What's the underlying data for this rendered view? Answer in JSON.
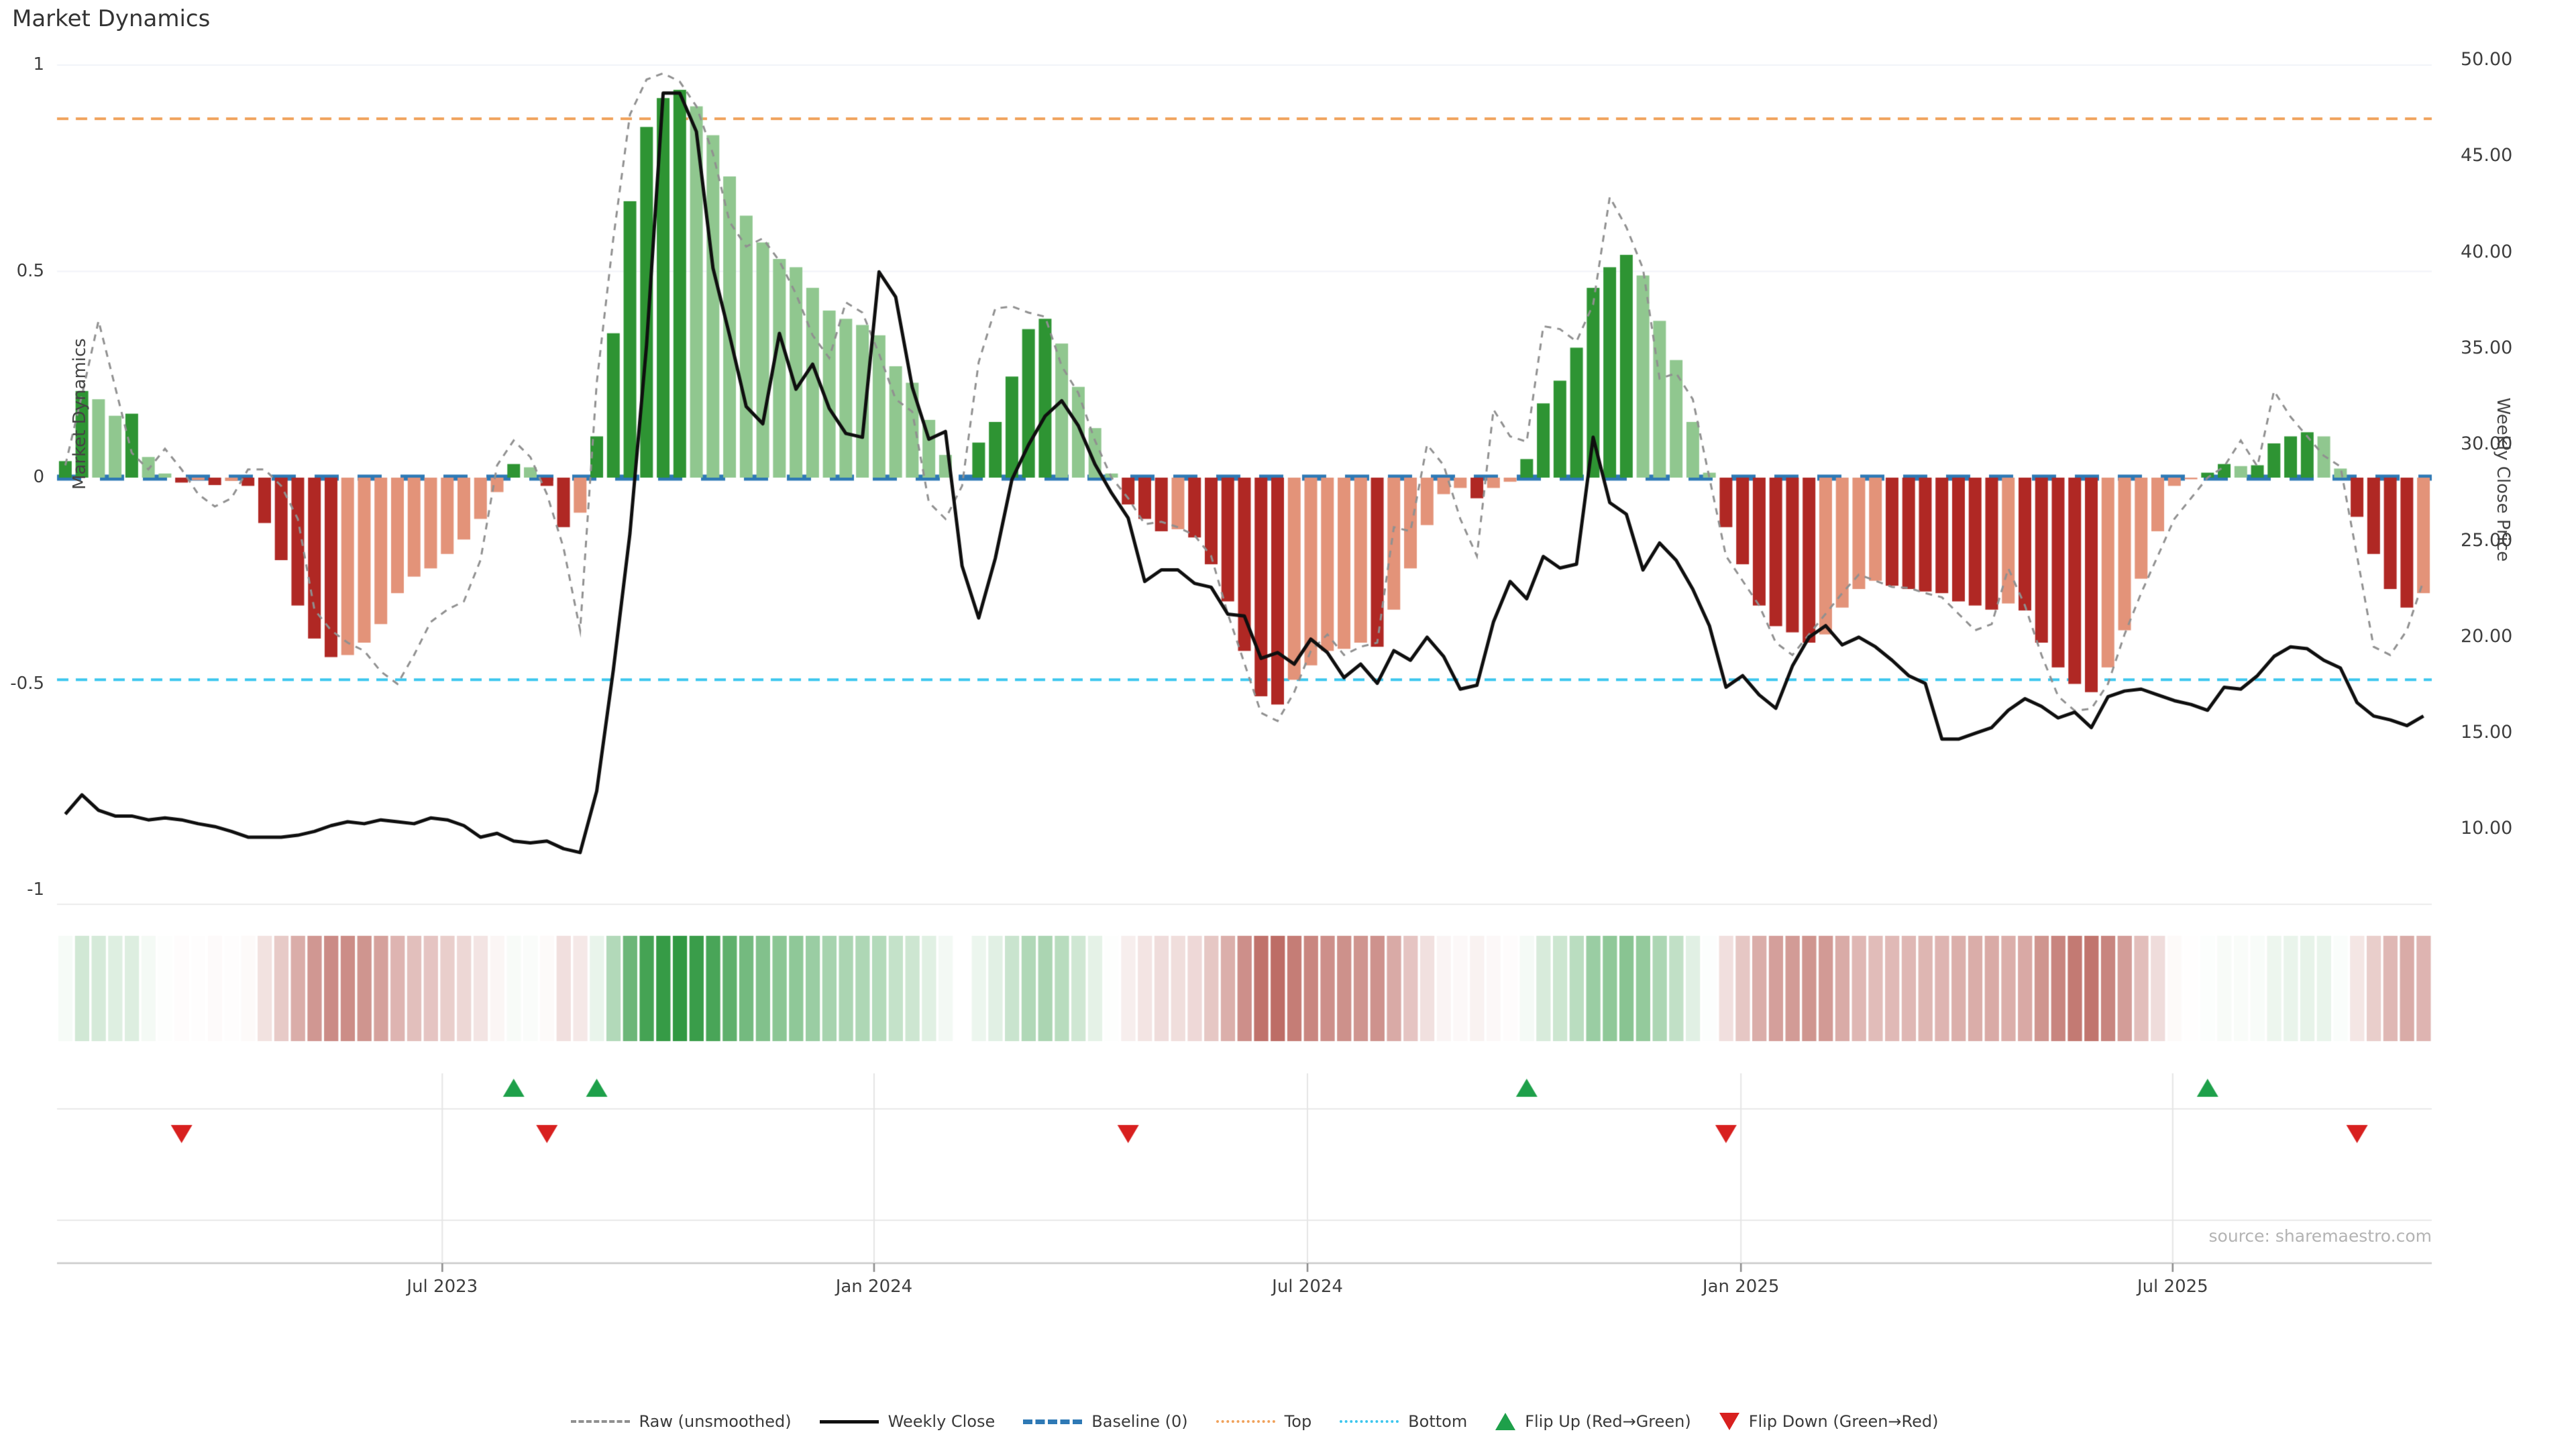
{
  "title": "Market Dynamics",
  "source": "source: sharemaestro.com",
  "left_axis": {
    "label": "Market Dynamics",
    "ticks": [
      "1",
      "0.5",
      "0",
      "-0.5",
      "-1"
    ],
    "tick_values": [
      1,
      0.5,
      0,
      -0.5,
      -1
    ]
  },
  "right_axis": {
    "label": "Weekly Close Price",
    "ticks": [
      "50.00",
      "45.00",
      "40.00",
      "35.00",
      "30.00",
      "25.00",
      "20.00",
      "15.00",
      "10.00"
    ],
    "tick_values": [
      50,
      45,
      40,
      35,
      30,
      25,
      20,
      15,
      10
    ]
  },
  "x_axis": {
    "ticks": [
      {
        "label": "Jul 2023",
        "week": 22.7
      },
      {
        "label": "Jan 2024",
        "week": 48.7
      },
      {
        "label": "Jul 2024",
        "week": 74.8
      },
      {
        "label": "Jan 2025",
        "week": 100.9
      },
      {
        "label": "Jul 2025",
        "week": 126.9
      }
    ]
  },
  "legend": [
    {
      "label": "Raw (unsmoothed)",
      "symbol": "dashed-line",
      "color": "#8f8f8f"
    },
    {
      "label": "Weekly Close",
      "symbol": "solid-line",
      "color": "#111111"
    },
    {
      "label": "Baseline (0)",
      "symbol": "long-dash-line",
      "color": "#2e79b5"
    },
    {
      "label": "Top",
      "symbol": "dotted-line",
      "color": "#f0a25c"
    },
    {
      "label": "Bottom",
      "symbol": "dotted-line",
      "color": "#3cc6ee"
    },
    {
      "label": "Flip Up (Red→Green)",
      "symbol": "triangle-up",
      "color": "#1ea04a"
    },
    {
      "label": "Flip Down (Green→Red)",
      "symbol": "triangle-down",
      "color": "#d8201f"
    }
  ],
  "chart_data": {
    "type": "bar",
    "subtype": "composite-weekly",
    "title": "Market Dynamics",
    "xlabel": "",
    "ylabel_left": "Market Dynamics",
    "ylabel_right": "Weekly Close Price",
    "left_range": [
      -1,
      1
    ],
    "right_range": [
      10,
      50
    ],
    "baseline": 0,
    "top_line": 0.87,
    "bottom_line": -0.49,
    "missing_week_index": 54,
    "n_weeks": 143,
    "series": [
      {
        "name": "Market Dynamics (smoothed bars)",
        "type": "bar",
        "axis": "left",
        "values": [
          0.04,
          0.21,
          0.19,
          0.15,
          0.155,
          0.05,
          0.01,
          -0.012,
          -0.006,
          -0.018,
          -0.008,
          -0.02,
          -0.11,
          -0.2,
          -0.31,
          -0.39,
          -0.435,
          -0.43,
          -0.4,
          -0.355,
          -0.28,
          -0.24,
          -0.22,
          -0.185,
          -0.15,
          -0.1,
          -0.035,
          0.033,
          0.025,
          -0.02,
          -0.12,
          -0.085,
          0.1,
          0.35,
          0.67,
          0.85,
          0.92,
          0.94,
          0.9,
          0.83,
          0.73,
          0.635,
          0.57,
          0.53,
          0.51,
          0.46,
          0.405,
          0.385,
          0.37,
          0.345,
          0.27,
          0.23,
          0.14,
          0.055,
          null,
          0.085,
          0.135,
          0.245,
          0.36,
          0.385,
          0.325,
          0.22,
          0.12,
          0.01,
          -0.065,
          -0.1,
          -0.13,
          -0.125,
          -0.145,
          -0.21,
          -0.3,
          -0.42,
          -0.53,
          -0.55,
          -0.49,
          -0.455,
          -0.42,
          -0.415,
          -0.4,
          -0.41,
          -0.32,
          -0.22,
          -0.115,
          -0.04,
          -0.025,
          -0.05,
          -0.025,
          -0.01,
          0.045,
          0.18,
          0.235,
          0.315,
          0.46,
          0.51,
          0.54,
          0.49,
          0.38,
          0.285,
          0.135,
          0.012,
          -0.12,
          -0.21,
          -0.31,
          -0.36,
          -0.375,
          -0.4,
          -0.38,
          -0.315,
          -0.27,
          -0.25,
          -0.262,
          -0.27,
          -0.276,
          -0.28,
          -0.3,
          -0.31,
          -0.32,
          -0.305,
          -0.322,
          -0.4,
          -0.46,
          -0.5,
          -0.52,
          -0.46,
          -0.37,
          -0.245,
          -0.13,
          -0.02,
          -0.004,
          0.012,
          0.033,
          0.028,
          0.03,
          0.083,
          0.1,
          0.11,
          0.1,
          0.022,
          -0.095,
          -0.185,
          -0.27,
          -0.315,
          -0.28
        ]
      },
      {
        "name": "Raw (unsmoothed)",
        "type": "line",
        "style": "dashed",
        "axis": "left",
        "values": [
          0.03,
          0.2,
          0.38,
          0.22,
          0.06,
          0.02,
          0.07,
          0.02,
          -0.04,
          -0.07,
          -0.05,
          0.02,
          0.02,
          -0.02,
          -0.1,
          -0.32,
          -0.37,
          -0.4,
          -0.42,
          -0.47,
          -0.5,
          -0.43,
          -0.35,
          -0.32,
          -0.3,
          -0.2,
          0.03,
          0.09,
          0.05,
          -0.04,
          -0.17,
          -0.37,
          0.23,
          0.58,
          0.88,
          0.965,
          0.98,
          0.96,
          0.9,
          0.785,
          0.62,
          0.56,
          0.58,
          0.525,
          0.445,
          0.345,
          0.29,
          0.425,
          0.4,
          0.3,
          0.19,
          0.16,
          -0.06,
          -0.1,
          -0.02,
          0.28,
          0.41,
          0.415,
          0.4,
          0.39,
          0.27,
          0.205,
          0.09,
          0.0,
          -0.05,
          -0.113,
          -0.107,
          -0.12,
          -0.14,
          -0.19,
          -0.33,
          -0.45,
          -0.57,
          -0.59,
          -0.52,
          -0.42,
          -0.38,
          -0.43,
          -0.41,
          -0.4,
          -0.12,
          -0.13,
          0.08,
          0.03,
          -0.1,
          -0.19,
          0.165,
          0.1,
          0.087,
          0.367,
          0.36,
          0.33,
          0.42,
          0.68,
          0.607,
          0.507,
          0.24,
          0.253,
          0.19,
          0.0,
          -0.19,
          -0.25,
          -0.31,
          -0.4,
          -0.43,
          -0.38,
          -0.33,
          -0.28,
          -0.235,
          -0.25,
          -0.265,
          -0.267,
          -0.28,
          -0.29,
          -0.33,
          -0.37,
          -0.355,
          -0.22,
          -0.31,
          -0.43,
          -0.53,
          -0.565,
          -0.56,
          -0.5,
          -0.38,
          -0.28,
          -0.19,
          -0.1,
          -0.05,
          0.0,
          0.027,
          0.09,
          0.027,
          0.21,
          0.147,
          0.1,
          0.053,
          0.027,
          -0.19,
          -0.41,
          -0.43,
          -0.37,
          -0.25
        ]
      },
      {
        "name": "Weekly Close",
        "type": "line",
        "style": "solid",
        "axis": "right",
        "values": [
          10.8,
          11.8,
          11.0,
          10.7,
          10.7,
          10.5,
          10.6,
          10.5,
          10.3,
          10.15,
          9.9,
          9.6,
          9.6,
          9.6,
          9.7,
          9.9,
          10.2,
          10.4,
          10.3,
          10.5,
          10.4,
          10.3,
          10.6,
          10.5,
          10.2,
          9.6,
          9.8,
          9.4,
          9.3,
          9.4,
          9.0,
          8.8,
          12.0,
          18.3,
          25.4,
          35.2,
          48.3,
          48.3,
          46.3,
          39.2,
          35.7,
          32.0,
          31.1,
          35.8,
          32.9,
          34.2,
          31.9,
          30.6,
          30.4,
          39.0,
          37.7,
          33.0,
          30.3,
          30.7,
          23.7,
          21.0,
          24.1,
          28.2,
          30.0,
          31.5,
          32.3,
          31.0,
          29.0,
          27.5,
          26.2,
          22.9,
          23.5,
          23.5,
          22.8,
          22.6,
          21.2,
          21.1,
          18.9,
          19.2,
          18.6,
          19.9,
          19.2,
          17.9,
          18.6,
          17.6,
          19.3,
          18.8,
          20.0,
          19.0,
          17.3,
          17.5,
          20.8,
          22.9,
          22.0,
          24.2,
          23.6,
          23.8,
          30.4,
          27.0,
          26.4,
          23.5,
          24.9,
          24.0,
          22.5,
          20.6,
          17.4,
          18.0,
          17.0,
          16.3,
          18.5,
          20.0,
          20.6,
          19.6,
          20.0,
          19.5,
          18.8,
          18.0,
          17.6,
          14.7,
          14.7,
          15.0,
          15.3,
          16.2,
          16.8,
          16.4,
          15.8,
          16.1,
          15.3,
          16.9,
          17.2,
          17.3,
          17.0,
          16.7,
          16.5,
          16.2,
          17.4,
          17.3,
          18.0,
          19.0,
          19.5,
          19.4,
          18.8,
          18.4,
          16.6,
          15.9,
          15.7,
          15.4,
          15.9
        ]
      }
    ],
    "flip_up_weeks": [
      27,
      32,
      88,
      129
    ],
    "flip_down_weeks": [
      7,
      29,
      64,
      100,
      138
    ],
    "colors": {
      "bar_pos_dark": "#2e9433",
      "bar_pos_light": "#90c78f",
      "bar_neg_dark": "#b02824",
      "bar_neg_light": "#e39379",
      "raw_line": "#909090",
      "close_line": "#0f0f0f",
      "baseline": "#2e79b5",
      "top_line": "#f0a25c",
      "bottom_line": "#3cc6ee",
      "heat_pos_max": "#2f9840",
      "heat_neg_max": "#b55a52",
      "flip_up": "#1ea04a",
      "flip_down": "#d8201f"
    },
    "legend_position": "bottom-center",
    "grid": "minimal"
  }
}
